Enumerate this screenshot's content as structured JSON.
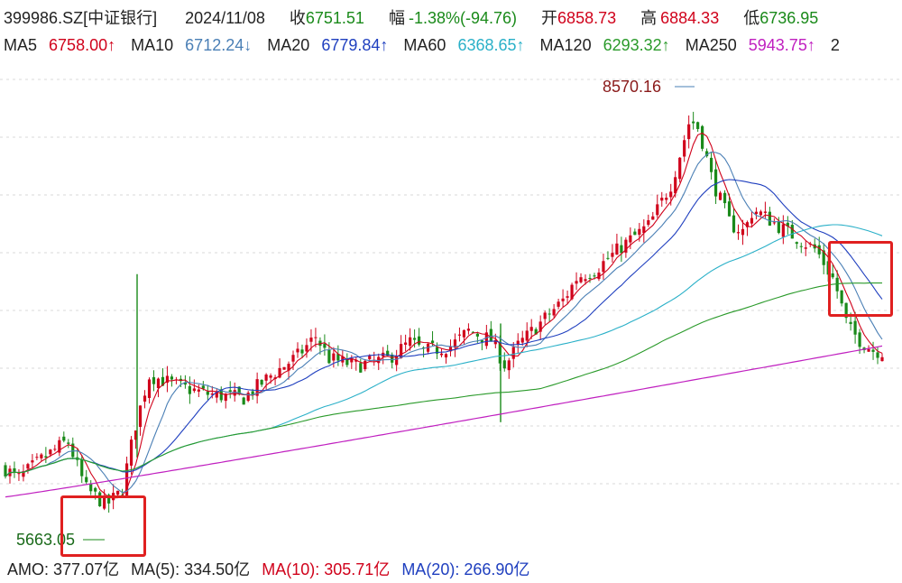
{
  "header": {
    "code": "399986.SZ[中证银行]",
    "date": "2024/11/08",
    "close_label": "收",
    "close": "6751.51",
    "change_label": "幅",
    "change": "-1.38%(-94.76)",
    "open_label": "开",
    "open": "6858.73",
    "high_label": "高",
    "high": "6884.33",
    "low_label": "低",
    "low": "6736.95"
  },
  "ma": {
    "ma5_label": "MA5",
    "ma5": "6758.00↑",
    "ma10_label": "MA10",
    "ma10": "6712.24↓",
    "ma20_label": "MA20",
    "ma20": "6779.84↑",
    "ma60_label": "MA60",
    "ma60": "6368.65↑",
    "ma120_label": "MA120",
    "ma120": "6293.32↑",
    "ma250_label": "MA250",
    "ma250": "5943.75↑",
    "cut_off": "2"
  },
  "colors": {
    "up": "#d0021b",
    "down": "#1a8a1a",
    "ma5": "#d0021b",
    "ma10": "#4a7fb5",
    "ma20": "#1f3fbf",
    "ma60": "#2ab0c8",
    "ma120": "#2a9a2a",
    "ma250": "#c020c0",
    "highlight_box": "#e02020"
  },
  "chart_data": {
    "type": "candlestick",
    "y_annotations": {
      "peak": "8570.16",
      "trough": "5663.05"
    },
    "series": [
      {
        "name": "MA5",
        "color": "#d0021b"
      },
      {
        "name": "MA10",
        "color": "#4a7fb5"
      },
      {
        "name": "MA20",
        "color": "#1f3fbf"
      },
      {
        "name": "MA60",
        "color": "#2ab0c8"
      },
      {
        "name": "MA120",
        "color": "#2a9a2a"
      },
      {
        "name": "MA250",
        "color": "#c020c0"
      }
    ],
    "last_bar": {
      "date": "2024/11/08",
      "open": 6858.73,
      "high": 6884.33,
      "low": 6736.95,
      "close": 6751.51
    }
  },
  "footer": {
    "amo_label": "AMO:",
    "amo": "377.07亿",
    "vma5_label": "MA(5):",
    "vma5": "334.50亿",
    "vma10_label": "MA(10):",
    "vma10": "305.71亿",
    "vma20_label": "MA(20):",
    "vma20": "266.90亿"
  }
}
